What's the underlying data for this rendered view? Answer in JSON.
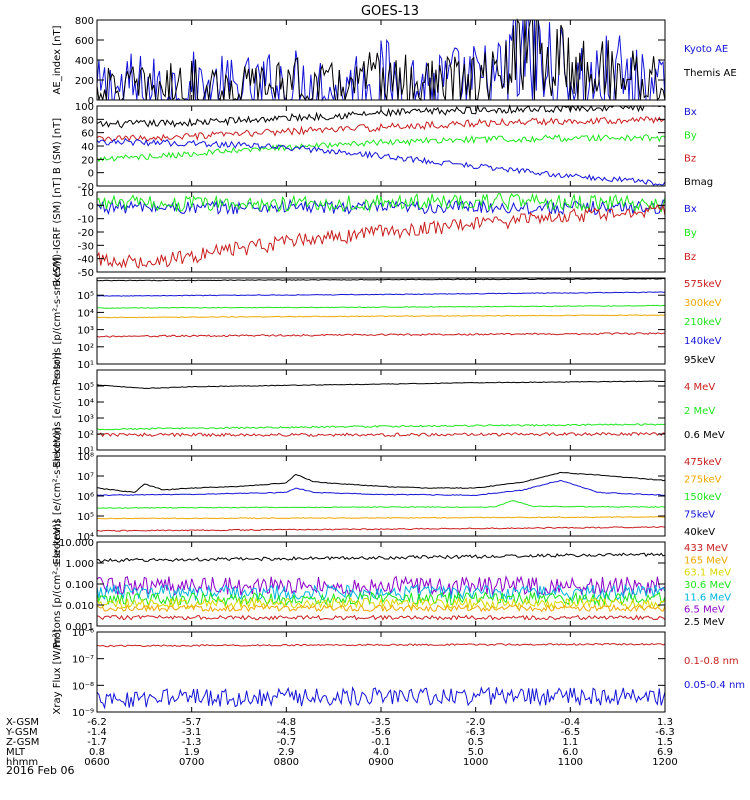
{
  "title": "GOES-13",
  "colors": {
    "black": "#000000",
    "blue": "#1414d8",
    "green": "#1ee61e",
    "red": "#c81e1e",
    "orange": "#f0a800",
    "cyan": "#00b4dc",
    "yellow": "#d8d800",
    "purple": "#8c00c8",
    "lightblue": "#3c8cff"
  },
  "chart_data": [
    {
      "id": "ae",
      "type": "line",
      "ylabel": "AE_index [nT]",
      "yscale": "linear",
      "ylim": [
        0,
        800
      ],
      "yticks": [
        0,
        200,
        400,
        600,
        800
      ],
      "legend": [
        {
          "name": "Kyoto AE",
          "color": "blue"
        },
        {
          "name": "Themis AE",
          "color": "black"
        }
      ],
      "series": [
        {
          "name": "Kyoto AE",
          "color": "blue",
          "noise": 25,
          "x": [
            6.0,
            6.3,
            6.6,
            7.0,
            7.5,
            8.0,
            8.5,
            9.0,
            9.5,
            10.0,
            10.3,
            10.4,
            10.5,
            10.55,
            10.6,
            10.7,
            10.8,
            11.0,
            11.2,
            11.5,
            11.8,
            12.0
          ],
          "y": [
            70,
            110,
            90,
            110,
            80,
            130,
            100,
            170,
            120,
            150,
            180,
            400,
            360,
            780,
            500,
            320,
            260,
            190,
            150,
            200,
            100,
            60
          ]
        },
        {
          "name": "Themis AE",
          "color": "black",
          "noise": 15,
          "x": [
            6.0,
            6.3,
            6.6,
            7.0,
            7.5,
            8.0,
            8.5,
            9.0,
            9.5,
            10.0,
            10.3,
            10.4,
            10.5,
            10.55,
            10.6,
            10.7,
            10.8,
            11.0,
            11.2,
            11.5,
            11.8,
            12.0
          ],
          "y": [
            90,
            120,
            110,
            150,
            120,
            170,
            130,
            210,
            150,
            180,
            220,
            430,
            400,
            690,
            520,
            400,
            380,
            330,
            300,
            260,
            200,
            160
          ]
        }
      ]
    },
    {
      "id": "bsm",
      "type": "line",
      "ylabel": "B (SM) [nT]",
      "yscale": "linear",
      "ylim": [
        -20,
        100
      ],
      "yticks": [
        -20,
        0,
        20,
        40,
        60,
        80,
        100
      ],
      "legend": [
        {
          "name": "Bx",
          "color": "blue"
        },
        {
          "name": "By",
          "color": "green"
        },
        {
          "name": "Bz",
          "color": "red"
        },
        {
          "name": "Bmag",
          "color": "black"
        }
      ],
      "series": [
        {
          "name": "Bmag",
          "color": "black",
          "noise": 0.4,
          "x": [
            6.0,
            7.0,
            8.0,
            9.0,
            10.0,
            11.0,
            12.0
          ],
          "y": [
            72,
            75,
            82,
            89,
            94,
            97,
            99
          ]
        },
        {
          "name": "Bz",
          "color": "red",
          "noise": 0.4,
          "x": [
            6.0,
            7.0,
            8.0,
            9.0,
            10.0,
            11.0,
            12.0
          ],
          "y": [
            50,
            54,
            62,
            68,
            74,
            78,
            80
          ]
        },
        {
          "name": "By",
          "color": "green",
          "noise": 0.4,
          "x": [
            6.0,
            7.0,
            8.0,
            9.0,
            10.0,
            11.0,
            12.0
          ],
          "y": [
            20,
            28,
            38,
            45,
            50,
            52,
            52
          ]
        },
        {
          "name": "Bx",
          "color": "blue",
          "noise": 0.4,
          "x": [
            6.0,
            7.0,
            8.0,
            9.0,
            10.0,
            11.0,
            12.0
          ],
          "y": [
            47,
            44,
            38,
            25,
            10,
            -5,
            -16
          ]
        }
      ]
    },
    {
      "id": "bigrf",
      "type": "line",
      "ylabel": "B (SM)-IGRF (SM) [nT]",
      "yscale": "linear",
      "ylim": [
        -50,
        10
      ],
      "yticks": [
        -50,
        -40,
        -30,
        -20,
        -10,
        0,
        10
      ],
      "legend": [
        {
          "name": "Bx",
          "color": "blue"
        },
        {
          "name": "By",
          "color": "green"
        },
        {
          "name": "Bz",
          "color": "red"
        }
      ],
      "series": [
        {
          "name": "Bx",
          "color": "blue",
          "noise": 0.5,
          "x": [
            6.0,
            7.0,
            8.0,
            9.0,
            10.0,
            11.0,
            12.0
          ],
          "y": [
            -1,
            -2,
            -1,
            -2,
            -1,
            -2,
            -1
          ]
        },
        {
          "name": "By",
          "color": "green",
          "noise": 0.6,
          "x": [
            6.0,
            7.0,
            8.0,
            9.0,
            10.0,
            11.0,
            12.0
          ],
          "y": [
            2,
            1,
            1,
            2,
            3,
            2,
            1
          ]
        },
        {
          "name": "Bz",
          "color": "red",
          "noise": 0.5,
          "x": [
            6.0,
            6.5,
            7.0,
            8.0,
            9.0,
            10.0,
            11.0,
            12.0
          ],
          "y": [
            -41,
            -42,
            -38,
            -28,
            -20,
            -14,
            -8,
            -3
          ]
        }
      ]
    },
    {
      "id": "protons_low",
      "type": "line",
      "ylabel": "Protons [p/(cm²-s-sr-keV)]",
      "yscale": "log",
      "ylim": [
        1,
        100000
      ],
      "ytick_labels": [
        "10¹",
        "10²",
        "10³",
        "10⁴",
        "10⁵"
      ],
      "legend": [
        {
          "name": "575keV",
          "color": "red"
        },
        {
          "name": "300keV",
          "color": "orange"
        },
        {
          "name": "210keV",
          "color": "green"
        },
        {
          "name": "140keV",
          "color": "blue"
        },
        {
          "name": "95keV",
          "color": "black"
        }
      ],
      "series": [
        {
          "name": "95keV",
          "color": "black",
          "noise": 0.02,
          "x": [
            6.0,
            9.0,
            12.0
          ],
          "y": [
            70000,
            80000,
            90000
          ]
        },
        {
          "name": "140keV",
          "color": "blue",
          "noise": 0.02,
          "x": [
            6.0,
            9.0,
            12.0
          ],
          "y": [
            9000,
            11000,
            15000
          ]
        },
        {
          "name": "210keV",
          "color": "green",
          "noise": 0.02,
          "x": [
            6.0,
            9.0,
            12.0
          ],
          "y": [
            1800,
            2000,
            2500
          ]
        },
        {
          "name": "300keV",
          "color": "orange",
          "noise": 0.02,
          "x": [
            6.0,
            9.0,
            12.0
          ],
          "y": [
            500,
            600,
            700
          ]
        },
        {
          "name": "575keV",
          "color": "red",
          "noise": 0.05,
          "x": [
            6.0,
            9.0,
            12.0
          ],
          "y": [
            40,
            50,
            60
          ]
        }
      ]
    },
    {
      "id": "electrons_mev",
      "type": "line",
      "ylabel": "Electrons [e/(cm²-s-sr)]",
      "yscale": "log",
      "ylim": [
        1,
        100000
      ],
      "ytick_labels": [
        "10¹",
        "10²",
        "10³",
        "10⁴",
        "10⁵"
      ],
      "legend": [
        {
          "name": "4 MeV",
          "color": "red"
        },
        {
          "name": "2 MeV",
          "color": "green"
        },
        {
          "name": "0.6 MeV",
          "color": "black"
        }
      ],
      "series": [
        {
          "name": "0.6 MeV",
          "color": "black",
          "noise": 0.02,
          "x": [
            6.0,
            6.5,
            7.0,
            8.0,
            9.0,
            10.0,
            11.0,
            12.0
          ],
          "y": [
            12000,
            7000,
            9000,
            11000,
            13000,
            16000,
            18000,
            20000
          ]
        },
        {
          "name": "2 MeV",
          "color": "green",
          "noise": 0.05,
          "x": [
            6.0,
            9.0,
            12.0
          ],
          "y": [
            20,
            30,
            40
          ]
        },
        {
          "name": "4 MeV",
          "color": "red",
          "noise": 0.1,
          "x": [
            6.0,
            9.0,
            12.0
          ],
          "y": [
            9,
            9,
            10
          ]
        }
      ]
    },
    {
      "id": "electrons_kev",
      "type": "line",
      "ylabel": "Electrons [e/(cm²-s-sr-keV)]",
      "yscale": "log",
      "ylim": [
        10000,
        100000000
      ],
      "ytick_labels": [
        "10⁴",
        "10⁵",
        "10⁶",
        "10⁷",
        "10⁸"
      ],
      "legend": [
        {
          "name": "475keV",
          "color": "red"
        },
        {
          "name": "275keV",
          "color": "orange"
        },
        {
          "name": "150keV",
          "color": "green"
        },
        {
          "name": "75keV",
          "color": "blue"
        },
        {
          "name": "40keV",
          "color": "black"
        }
      ],
      "series": [
        {
          "name": "40keV",
          "color": "black",
          "noise": 0.02,
          "x": [
            6.0,
            6.4,
            6.5,
            6.7,
            7.0,
            7.5,
            8.0,
            8.1,
            8.3,
            9.0,
            9.5,
            10.0,
            10.5,
            10.9,
            11.3,
            12.0
          ],
          "y": [
            2500000,
            1500000,
            4000000,
            2000000,
            2500000,
            3000000,
            4500000,
            12000000,
            5000000,
            3000000,
            2500000,
            2500000,
            5000000,
            15000000,
            11000000,
            6000000
          ]
        },
        {
          "name": "75keV",
          "color": "blue",
          "noise": 0.02,
          "x": [
            6.0,
            7.0,
            8.0,
            8.1,
            8.3,
            9.0,
            10.0,
            10.5,
            10.9,
            11.3,
            12.0
          ],
          "y": [
            1100000,
            1200000,
            1500000,
            2500000,
            1500000,
            1200000,
            1100000,
            2000000,
            6000000,
            1500000,
            1100000
          ]
        },
        {
          "name": "150keV",
          "color": "green",
          "noise": 0.02,
          "x": [
            6.0,
            9.0,
            10.2,
            10.4,
            10.6,
            12.0
          ],
          "y": [
            250000,
            280000,
            280000,
            600000,
            300000,
            280000
          ]
        },
        {
          "name": "275keV",
          "color": "orange",
          "noise": 0.02,
          "x": [
            6.0,
            9.0,
            12.0
          ],
          "y": [
            75000,
            80000,
            90000
          ]
        },
        {
          "name": "475keV",
          "color": "red",
          "noise": 0.03,
          "x": [
            6.0,
            9.0,
            12.0
          ],
          "y": [
            18000,
            22000,
            28000
          ]
        }
      ]
    },
    {
      "id": "protons_high",
      "type": "line",
      "ylabel": "Protons [p/(cm²-s-sr-keV)]",
      "yscale": "log",
      "ylim": [
        0.001,
        10
      ],
      "ytick_labels": [
        "0.001",
        "0.010",
        "0.100",
        "1.000",
        "10.000"
      ],
      "legend": [
        {
          "name": "433 MeV",
          "color": "red"
        },
        {
          "name": "165 MeV",
          "color": "orange"
        },
        {
          "name": "63.1 MeV",
          "color": "yellow"
        },
        {
          "name": "30.6 MeV",
          "color": "green"
        },
        {
          "name": "11.6 MeV",
          "color": "cyan"
        },
        {
          "name": "6.5 MeV",
          "color": "purple"
        },
        {
          "name": "2.5 MeV",
          "color": "black"
        }
      ],
      "series": [
        {
          "name": "2.5 MeV",
          "color": "black",
          "noise": 0.08,
          "x": [
            6.0,
            9.0,
            12.0
          ],
          "y": [
            1.3,
            1.8,
            2.6
          ]
        },
        {
          "name": "6.5 MeV",
          "color": "purple",
          "noise": 0.45,
          "x": [
            6.0,
            12.0
          ],
          "y": [
            0.08,
            0.08
          ]
        },
        {
          "name": "11.6 MeV",
          "color": "cyan",
          "noise": 0.35,
          "x": [
            6.0,
            12.0
          ],
          "y": [
            0.04,
            0.04
          ]
        },
        {
          "name": "30.6 MeV",
          "color": "green",
          "noise": 0.3,
          "x": [
            6.0,
            12.0
          ],
          "y": [
            0.02,
            0.02
          ]
        },
        {
          "name": "63.1 MeV",
          "color": "yellow",
          "noise": 0.25,
          "x": [
            6.0,
            12.0
          ],
          "y": [
            0.012,
            0.012
          ]
        },
        {
          "name": "165 MeV",
          "color": "orange",
          "noise": 0.15,
          "x": [
            6.0,
            12.0
          ],
          "y": [
            0.007,
            0.007
          ]
        },
        {
          "name": "433 MeV",
          "color": "red",
          "noise": 0.1,
          "x": [
            6.0,
            12.0
          ],
          "y": [
            0.0025,
            0.0025
          ]
        }
      ]
    },
    {
      "id": "xray",
      "type": "line",
      "ylabel": "Xray Flux [W/m²]",
      "yscale": "log",
      "ylim": [
        1e-09,
        1e-06
      ],
      "ytick_labels": [
        "10⁻⁹",
        "10⁻⁸",
        "10⁻⁷",
        "10⁻⁶"
      ],
      "legend": [
        {
          "name": "0.1-0.8 nm",
          "color": "red"
        },
        {
          "name": "0.05-0.4 nm",
          "color": "blue"
        }
      ],
      "series": [
        {
          "name": "0.1-0.8 nm",
          "color": "red",
          "noise": 0.03,
          "x": [
            6.0,
            9.0,
            12.0
          ],
          "y": [
            3e-07,
            3.3e-07,
            3.5e-07
          ]
        },
        {
          "name": "0.05-0.4 nm",
          "color": "blue",
          "noise": 0.35,
          "x": [
            6.0,
            9.0,
            12.0
          ],
          "y": [
            3e-09,
            4e-09,
            3.5e-09
          ]
        }
      ]
    }
  ],
  "xaxis": {
    "xlim": [
      6.0,
      12.0
    ],
    "tick_values": [
      6.0,
      7.0,
      8.0,
      9.0,
      10.0,
      11.0,
      12.0
    ],
    "rows": [
      {
        "label": "X-GSM",
        "values": [
          "-6.2",
          "-5.7",
          "-4.8",
          "-3.5",
          "-2.0",
          "-0.4",
          "1.3"
        ]
      },
      {
        "label": "Y-GSM",
        "values": [
          "-1.4",
          "-3.1",
          "-4.5",
          "-5.6",
          "-6.3",
          "-6.5",
          "-6.3"
        ]
      },
      {
        "label": "Z-GSM",
        "values": [
          "-1.7",
          "-1.3",
          "-0.7",
          "-0.1",
          "0.5",
          "1.1",
          "1.5"
        ]
      },
      {
        "label": "MLT",
        "values": [
          "0.8",
          "1.9",
          "2.9",
          "4.0",
          "5.0",
          "6.0",
          "6.9"
        ]
      },
      {
        "label": "hhmm",
        "values": [
          "0600",
          "0700",
          "0800",
          "0900",
          "1000",
          "1100",
          "1200"
        ]
      }
    ],
    "date": "2016 Feb 06"
  }
}
